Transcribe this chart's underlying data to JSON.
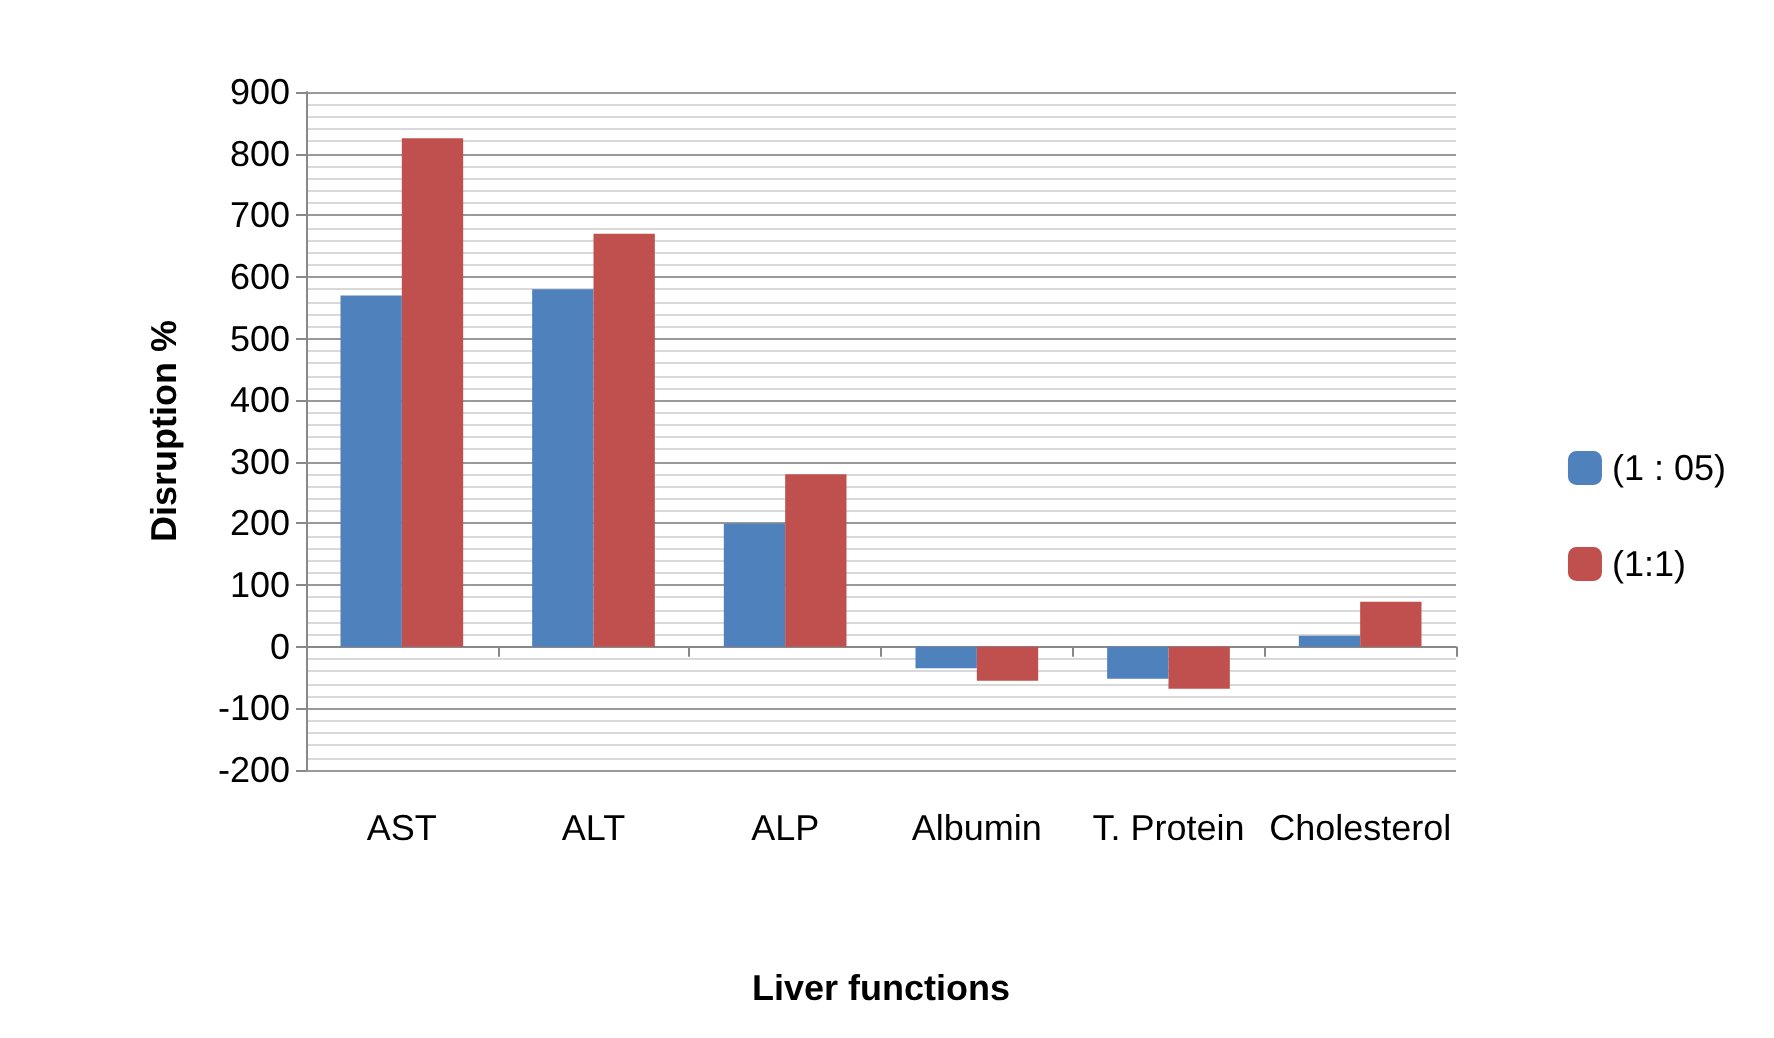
{
  "chart_data": {
    "type": "bar",
    "xlabel": "Liver functions",
    "ylabel": "Disruption %",
    "categories": [
      "AST",
      "ALT",
      "ALP",
      "Albumin",
      "T. Protein",
      "Cholesterol"
    ],
    "series": [
      {
        "name": "(1 : 05)",
        "color": "#4f81bd",
        "values": [
          570,
          580,
          200,
          -35,
          -52,
          18
        ]
      },
      {
        "name": "(1:1)",
        "color": "#c0504d",
        "values": [
          825,
          670,
          280,
          -55,
          -68,
          73
        ]
      }
    ],
    "ylim": [
      -200,
      900
    ],
    "yticks": [
      -200,
      -100,
      0,
      100,
      200,
      300,
      400,
      500,
      600,
      700,
      800,
      900
    ],
    "grid": true,
    "legend": "right"
  }
}
